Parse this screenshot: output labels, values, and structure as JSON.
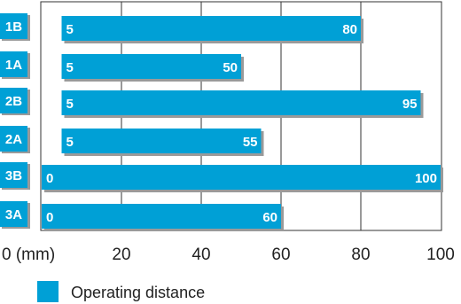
{
  "chart_data": {
    "type": "bar",
    "orientation": "horizontal",
    "floating": true,
    "categories": [
      "1B",
      "1A",
      "2B",
      "2A",
      "3B",
      "3A"
    ],
    "series": [
      {
        "name": "Operating distance",
        "start": [
          5,
          5,
          5,
          5,
          0,
          0
        ],
        "end": [
          80,
          50,
          95,
          55,
          100,
          60
        ]
      }
    ],
    "xticks": [
      0,
      20,
      40,
      60,
      80,
      100
    ],
    "xtick_labels": [
      "0 (mm)",
      "20",
      "40",
      "60",
      "80",
      "100"
    ],
    "xlim": [
      0,
      100
    ],
    "grid": true,
    "legend": "bottom-left"
  },
  "colors": {
    "bar": "#00a0d6",
    "bar_shadow": "#9a9a9a",
    "category_box": "#00a0d6",
    "grid": "#333333"
  }
}
